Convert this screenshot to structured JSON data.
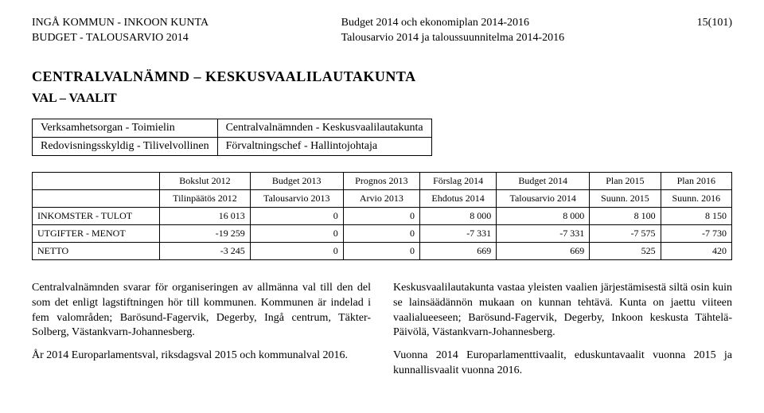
{
  "header": {
    "left_line1": "INGÅ KOMMUN - INKOON KUNTA",
    "left_line2": "BUDGET - TALOUSARVIO 2014",
    "center_line1": "Budget 2014 och ekonomiplan 2014-2016",
    "center_line2": "Talousarvio 2014 ja taloussuunnitelma 2014-2016",
    "page_num": "15(101)"
  },
  "title": "CENTRALVALNÄMND – KESKUSVAALILAUTAKUNTA",
  "subtitle": "VAL – VAALIT",
  "meta": {
    "rows": [
      {
        "k": "Verksamhetsorgan - Toimielin",
        "v": "Centralvalnämnden - Keskusvaalilautakunta"
      },
      {
        "k": "Redovisningsskyldig - Tilivelvollinen",
        "v": "Förvaltningschef - Hallintojohtaja"
      }
    ]
  },
  "budget": {
    "head_row1": [
      "",
      "Bokslut 2012",
      "Budget 2013",
      "Prognos 2013",
      "Förslag 2014",
      "Budget 2014",
      "Plan 2015",
      "Plan 2016"
    ],
    "head_row2": [
      "",
      "Tilinpäätös 2012",
      "Talousarvio 2013",
      "Arvio 2013",
      "Ehdotus 2014",
      "Talousarvio 2014",
      "Suunn. 2015",
      "Suunn. 2016"
    ],
    "rows": [
      {
        "label": "INKOMSTER - TULOT",
        "c": [
          "16 013",
          "0",
          "0",
          "8 000",
          "8 000",
          "8 100",
          "8 150"
        ]
      },
      {
        "label": "UTGIFTER - MENOT",
        "c": [
          "-19 259",
          "0",
          "0",
          "-7 331",
          "-7 331",
          "-7 575",
          "-7 730"
        ]
      },
      {
        "label": "NETTO",
        "c": [
          "-3 245",
          "0",
          "0",
          "669",
          "669",
          "525",
          "420"
        ]
      }
    ]
  },
  "body": {
    "left_p1": "Centralvalnämnden svarar för organiseringen av allmänna val till den del som det enligt lagstiftningen hör till kommunen. Kommunen är indelad i fem valområden; Barösund-Fagervik, Degerby, Ingå centrum, Täkter-Solberg, Västankvarn-Johannesberg.",
    "left_p2": "År 2014 Europarlamentsval, riksdagsval 2015 och kommunalval 2016.",
    "right_p1": "Keskusvaalilautakunta vastaa yleisten vaalien järjestämisestä siltä osin kuin se lainsäädännön mukaan on kunnan tehtävä. Kunta on jaettu viiteen vaalialueeseen; Barösund-Fagervik, Degerby, Inkoon keskusta Tähtelä-Päivölä, Västankvarn-Johannesberg.",
    "right_p2": "Vuonna 2014 Europarlamenttivaalit, eduskuntavaalit vuonna 2015 ja kunnallisvaalit vuonna 2016."
  }
}
